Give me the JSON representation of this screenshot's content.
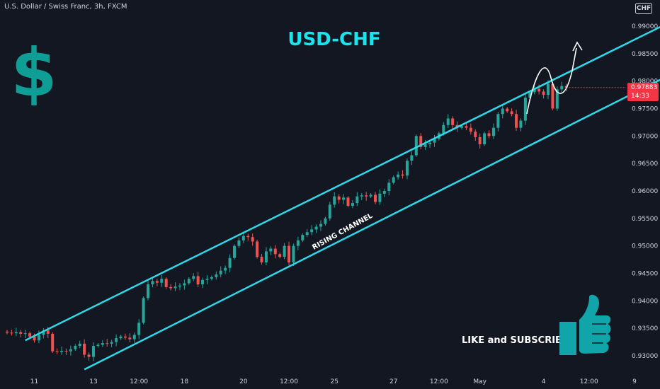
{
  "header": {
    "symbol_title": "U.S. Dollar / Swiss Franc, 3h, FXCM",
    "currency": "CHF"
  },
  "price_tag": {
    "price": "0.97883",
    "countdown": "14:33"
  },
  "annotations": {
    "pair_title": "USD-CHF",
    "channel_label": "RISING CHANNEL",
    "cta": "LIKE and SUBSCRIBE"
  },
  "colors": {
    "background": "#131722",
    "bull": "#26a69a",
    "bear": "#ef5350",
    "channel": "#2ed8e8",
    "title": "#19e5ef",
    "dollar_icon": "#0f9e96",
    "thumb_icon": "#11a5aa",
    "axis_text": "#d1d4dc",
    "price_tag": "#f23645"
  },
  "icons": {
    "currency": "dollar-sign-icon",
    "like": "thumbs-up-icon"
  },
  "chart_data": {
    "type": "candlestick",
    "title": "USD-CHF",
    "interval": "3h",
    "y_axis_position": "right",
    "ylim": [
      0.9293,
      0.9922
    ],
    "y_ticks": [
      "0.99000",
      "0.98500",
      "0.98000",
      "0.97500",
      "0.97000",
      "0.96500",
      "0.96000",
      "0.95500",
      "0.95000",
      "0.94500",
      "0.94000",
      "0.93500",
      "0.93000"
    ],
    "x_ticks": [
      {
        "label": "11",
        "index": 6
      },
      {
        "label": "13",
        "index": 19
      },
      {
        "label": "12:00",
        "index": 29
      },
      {
        "label": "18",
        "index": 39
      },
      {
        "label": "20",
        "index": 52
      },
      {
        "label": "12:00",
        "index": 62
      },
      {
        "label": "25",
        "index": 72
      },
      {
        "label": "27",
        "index": 85
      },
      {
        "label": "12:00",
        "index": 95
      },
      {
        "label": "May",
        "index": 104
      },
      {
        "label": "4",
        "index": 118
      },
      {
        "label": "12:00",
        "index": 128
      },
      {
        "label": "9",
        "index": 138
      }
    ],
    "x_range": [
      0,
      148
    ],
    "closes": [
      0.9342,
      0.9341,
      0.9343,
      0.934,
      0.9341,
      0.9335,
      0.9328,
      0.9338,
      0.9346,
      0.934,
      0.9308,
      0.9307,
      0.9309,
      0.9308,
      0.9312,
      0.9318,
      0.9322,
      0.9302,
      0.9298,
      0.9318,
      0.932,
      0.9323,
      0.9322,
      0.9325,
      0.9332,
      0.9335,
      0.9333,
      0.933,
      0.9338,
      0.936,
      0.9405,
      0.943,
      0.9436,
      0.9433,
      0.944,
      0.9425,
      0.9423,
      0.9426,
      0.9428,
      0.9432,
      0.944,
      0.9445,
      0.943,
      0.9438,
      0.944,
      0.9443,
      0.9448,
      0.9455,
      0.946,
      0.9478,
      0.95,
      0.951,
      0.9518,
      0.9516,
      0.9508,
      0.948,
      0.947,
      0.949,
      0.9495,
      0.9485,
      0.948,
      0.95,
      0.947,
      0.95,
      0.951,
      0.952,
      0.9525,
      0.953,
      0.9535,
      0.954,
      0.955,
      0.9575,
      0.959,
      0.9584,
      0.9588,
      0.9573,
      0.9578,
      0.959,
      0.9592,
      0.959,
      0.9593,
      0.958,
      0.9595,
      0.96,
      0.9615,
      0.9625,
      0.963,
      0.9628,
      0.9655,
      0.9665,
      0.97,
      0.968,
      0.9685,
      0.9688,
      0.9695,
      0.9705,
      0.972,
      0.9732,
      0.972,
      0.9715,
      0.9718,
      0.9715,
      0.9708,
      0.9698,
      0.9685,
      0.9705,
      0.97,
      0.9715,
      0.974,
      0.975,
      0.9745,
      0.974,
      0.9715,
      0.9728,
      0.977,
      0.978,
      0.9786,
      0.9781,
      0.9775,
      0.9795,
      0.975,
      0.9785,
      0.9791,
      0.9788
    ],
    "channel": {
      "upper": [
        {
          "index": 4,
          "value": 0.9328
        },
        {
          "index": 145,
          "value": 0.9904
        }
      ],
      "lower": [
        {
          "index": 17,
          "value": 0.9275
        },
        {
          "index": 145,
          "value": 0.9808
        }
      ]
    },
    "last_price": 0.97883
  }
}
